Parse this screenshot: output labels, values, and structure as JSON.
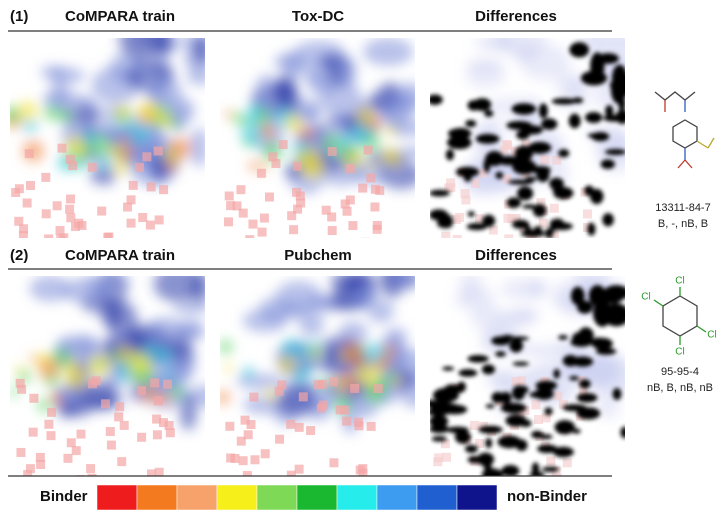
{
  "rows": [
    {
      "label": "(1)",
      "panels": [
        "CoMPARA train",
        "Tox-DC",
        "Differences"
      ],
      "compound": {
        "id": "13311-84-7",
        "labels": "B, -, nB, B"
      }
    },
    {
      "label": "(2)",
      "panels": [
        "CoMPARA train",
        "Pubchem",
        "Differences"
      ],
      "compound": {
        "id": "95-95-4",
        "labels": "nB, B, nB, nB",
        "atoms": [
          "Cl",
          "Cl",
          "Cl",
          "Cl"
        ]
      }
    }
  ],
  "legend": {
    "low": "Binder",
    "high": "non-Binder"
  }
}
